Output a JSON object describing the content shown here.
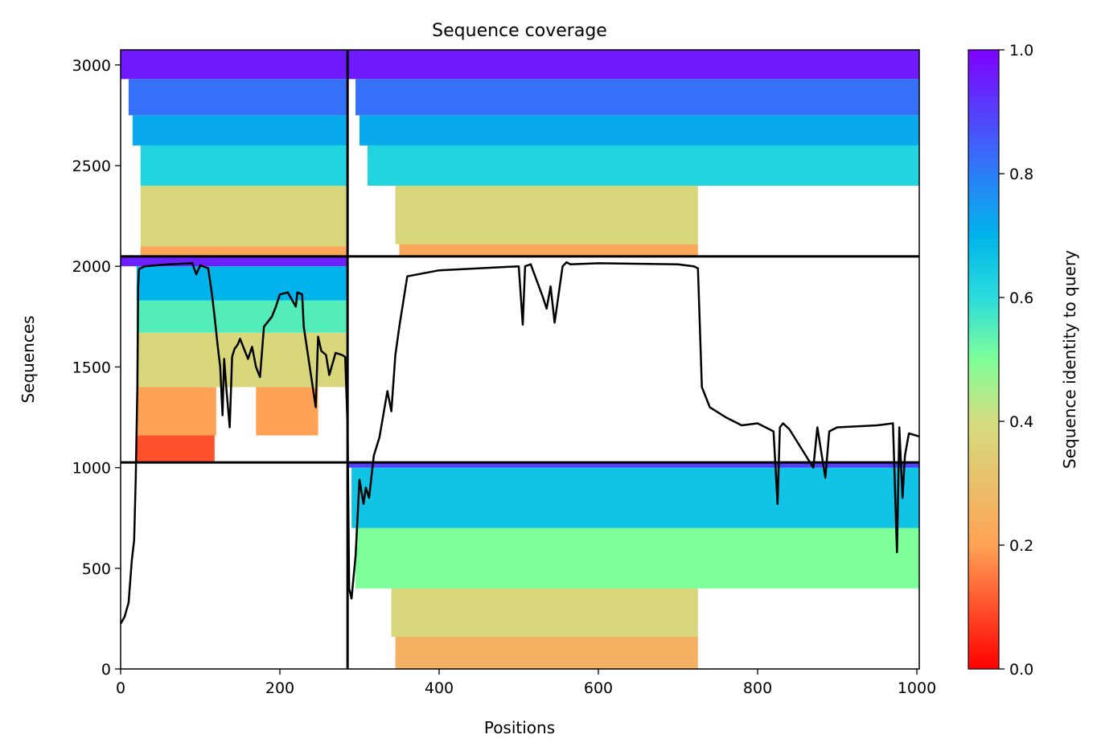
{
  "chart_data": {
    "type": "heatmap",
    "title": "Sequence coverage",
    "xlabel": "Positions",
    "ylabel": "Sequences",
    "colorbar_label": "Sequence identity to query",
    "colormap": "rainbow",
    "xlim": [
      0,
      1003
    ],
    "ylim": [
      0,
      3075
    ],
    "x_ticks": [
      0,
      200,
      400,
      600,
      800,
      1000
    ],
    "y_ticks": [
      0,
      500,
      1000,
      1500,
      2000,
      2500,
      3000
    ],
    "colorbar_ticks": [
      "0.0",
      "0.2",
      "0.4",
      "0.6",
      "0.8",
      "1.0"
    ],
    "grid": false,
    "dividers": {
      "vertical_x": [
        285
      ],
      "horizontal_y": [
        1026,
        2049
      ]
    },
    "blocks": [
      {
        "name": "chain-1-block",
        "x_range": [
          0,
          285
        ],
        "y_range": [
          1026,
          2049
        ],
        "bands": [
          {
            "y0": 1026,
            "y1": 1160,
            "x0": 20,
            "x1": 118,
            "identity": 0.1
          },
          {
            "y0": 1160,
            "y1": 1400,
            "x0": 20,
            "x1": 120,
            "identity": 0.2
          },
          {
            "y0": 1160,
            "y1": 1400,
            "x0": 170,
            "x1": 248,
            "identity": 0.2
          },
          {
            "y0": 1400,
            "y1": 1670,
            "x0": 20,
            "x1": 285,
            "identity": 0.38
          },
          {
            "y0": 1670,
            "y1": 1830,
            "x0": 20,
            "x1": 285,
            "identity": 0.55
          },
          {
            "y0": 1830,
            "y1": 2000,
            "x0": 20,
            "x1": 285,
            "identity": 0.7
          },
          {
            "y0": 2000,
            "y1": 2049,
            "x0": 0,
            "x1": 285,
            "identity": 0.95
          }
        ]
      },
      {
        "name": "chain-1-vs-2-block",
        "x_range": [
          0,
          285
        ],
        "y_range": [
          2049,
          3075
        ],
        "bands": [
          {
            "y0": 2049,
            "y1": 2100,
            "x0": 25,
            "x1": 285,
            "identity": 0.22
          },
          {
            "y0": 2100,
            "y1": 2400,
            "x0": 25,
            "x1": 285,
            "identity": 0.38
          },
          {
            "y0": 2400,
            "y1": 2600,
            "x0": 25,
            "x1": 285,
            "identity": 0.62
          },
          {
            "y0": 2600,
            "y1": 2750,
            "x0": 15,
            "x1": 285,
            "identity": 0.72
          },
          {
            "y0": 2750,
            "y1": 2930,
            "x0": 10,
            "x1": 285,
            "identity": 0.82
          },
          {
            "y0": 2930,
            "y1": 3075,
            "x0": 0,
            "x1": 285,
            "identity": 0.96
          }
        ]
      },
      {
        "name": "chain-2-block",
        "x_range": [
          285,
          1003
        ],
        "y_range": [
          0,
          1026
        ],
        "bands": [
          {
            "y0": 0,
            "y1": 160,
            "x0": 345,
            "x1": 725,
            "identity": 0.25
          },
          {
            "y0": 160,
            "y1": 400,
            "x0": 340,
            "x1": 725,
            "identity": 0.38
          },
          {
            "y0": 400,
            "y1": 700,
            "x0": 295,
            "x1": 1003,
            "identity": 0.5
          },
          {
            "y0": 700,
            "y1": 1000,
            "x0": 290,
            "x1": 1003,
            "identity": 0.66
          },
          {
            "y0": 1000,
            "y1": 1026,
            "x0": 285,
            "x1": 1003,
            "identity": 0.9
          }
        ]
      },
      {
        "name": "chain-2-vs-1-block",
        "x_range": [
          285,
          1003
        ],
        "y_range": [
          2049,
          3075
        ],
        "bands": [
          {
            "y0": 2049,
            "y1": 2110,
            "x0": 350,
            "x1": 725,
            "identity": 0.22
          },
          {
            "y0": 2110,
            "y1": 2400,
            "x0": 345,
            "x1": 725,
            "identity": 0.38
          },
          {
            "y0": 2400,
            "y1": 2600,
            "x0": 310,
            "x1": 1003,
            "identity": 0.62
          },
          {
            "y0": 2600,
            "y1": 2750,
            "x0": 300,
            "x1": 1003,
            "identity": 0.72
          },
          {
            "y0": 2750,
            "y1": 2930,
            "x0": 295,
            "x1": 1003,
            "identity": 0.82
          },
          {
            "y0": 2930,
            "y1": 3075,
            "x0": 285,
            "x1": 1003,
            "identity": 0.96
          }
        ]
      }
    ],
    "coverage_line": {
      "x": [
        0,
        5,
        10,
        14,
        17,
        19,
        21,
        22,
        23,
        25,
        30,
        60,
        90,
        95,
        100,
        110,
        115,
        118,
        122,
        125,
        128,
        130,
        133,
        137,
        140,
        143,
        147,
        150,
        160,
        165,
        170,
        175,
        180,
        190,
        195,
        200,
        210,
        220,
        222,
        228,
        230,
        245,
        248,
        252,
        258,
        262,
        270,
        278,
        282,
        285,
        287,
        290,
        295,
        300,
        305,
        308,
        312,
        318,
        325,
        335,
        340,
        345,
        350,
        360,
        400,
        500,
        505,
        508,
        515,
        530,
        535,
        540,
        545,
        555,
        560,
        565,
        600,
        700,
        720,
        725,
        730,
        740,
        760,
        780,
        800,
        820,
        825,
        828,
        832,
        840,
        870,
        875,
        885,
        890,
        900,
        950,
        970,
        975,
        978,
        982,
        985,
        990,
        1003
      ],
      "y": [
        225,
        260,
        330,
        540,
        640,
        950,
        1400,
        1900,
        1985,
        1990,
        2000,
        2010,
        2015,
        1960,
        2005,
        1990,
        1850,
        1750,
        1600,
        1500,
        1260,
        1540,
        1380,
        1200,
        1550,
        1590,
        1610,
        1640,
        1540,
        1600,
        1500,
        1450,
        1700,
        1750,
        1800,
        1860,
        1870,
        1800,
        1870,
        1860,
        1700,
        1300,
        1650,
        1580,
        1560,
        1460,
        1570,
        1560,
        1550,
        1200,
        400,
        350,
        560,
        940,
        820,
        900,
        850,
        1060,
        1150,
        1380,
        1280,
        1560,
        1700,
        1950,
        1980,
        2000,
        1710,
        2000,
        2010,
        1850,
        1790,
        1900,
        1720,
        2000,
        2020,
        2010,
        2015,
        2010,
        2000,
        1990,
        1400,
        1300,
        1250,
        1210,
        1220,
        1180,
        820,
        1200,
        1220,
        1190,
        1000,
        1200,
        950,
        1180,
        1200,
        1210,
        1220,
        580,
        1200,
        850,
        1060,
        1170,
        1155
      ]
    }
  }
}
